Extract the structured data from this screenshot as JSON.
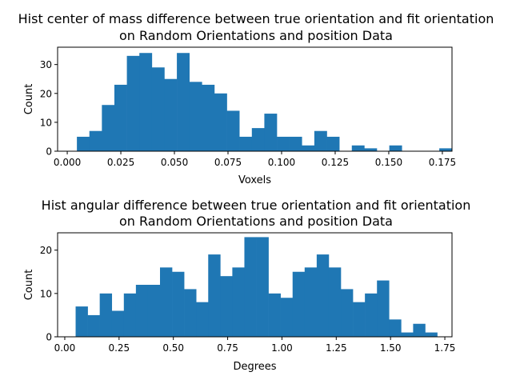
{
  "chart_data": [
    {
      "type": "bar",
      "subtype": "histogram",
      "title_lines": [
        "Hist center of mass difference between true orientation and fit orientation",
        "on Random Orientations and position Data"
      ],
      "xlabel": "Voxels",
      "ylabel": "Count",
      "xlim": [
        -0.0045,
        0.1795
      ],
      "ylim": [
        0,
        36
      ],
      "xticks": [
        0.0,
        0.025,
        0.05,
        0.075,
        0.1,
        0.125,
        0.15,
        0.175
      ],
      "xtick_labels": [
        "0.000",
        "0.025",
        "0.050",
        "0.075",
        "0.100",
        "0.125",
        "0.150",
        "0.175"
      ],
      "yticks": [
        0,
        10,
        20,
        30
      ],
      "ytick_labels": [
        "0",
        "10",
        "20",
        "30"
      ],
      "bin_start": 0.0045,
      "bin_width": 0.00583,
      "values": [
        5,
        7,
        16,
        23,
        33,
        34,
        29,
        25,
        34,
        24,
        23,
        20,
        14,
        5,
        8,
        13,
        5,
        5,
        2,
        7,
        5,
        0,
        2,
        1,
        0,
        2,
        0,
        0,
        0,
        1
      ],
      "color": "#1f77b4"
    },
    {
      "type": "bar",
      "subtype": "histogram",
      "title_lines": [
        "Hist angular difference between true orientation and fit orientation",
        "on Random Orientations and position Data"
      ],
      "xlabel": "Degrees",
      "ylabel": "Count",
      "xlim": [
        -0.033,
        1.783
      ],
      "ylim": [
        0,
        24
      ],
      "xticks": [
        0.0,
        0.25,
        0.5,
        0.75,
        1.0,
        1.25,
        1.5,
        1.75
      ],
      "xtick_labels": [
        "0.00",
        "0.25",
        "0.50",
        "0.75",
        "1.00",
        "1.25",
        "1.50",
        "1.75"
      ],
      "yticks": [
        0,
        10,
        20
      ],
      "ytick_labels": [
        "0",
        "10",
        "20"
      ],
      "bin_start": 0.05,
      "bin_width": 0.0555,
      "values": [
        7,
        5,
        10,
        6,
        10,
        12,
        12,
        16,
        15,
        11,
        8,
        19,
        14,
        16,
        23,
        23,
        10,
        9,
        15,
        16,
        19,
        16,
        11,
        8,
        10,
        13,
        4,
        1,
        3,
        1
      ],
      "color": "#1f77b4"
    }
  ]
}
